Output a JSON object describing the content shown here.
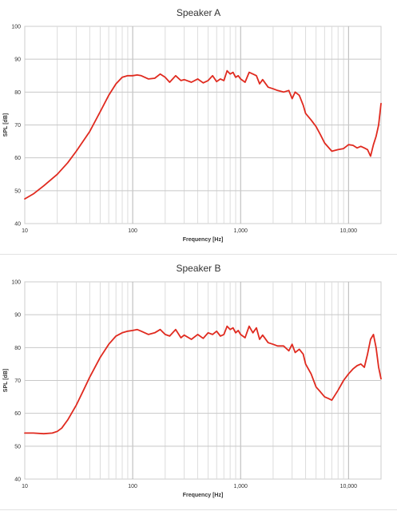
{
  "chart_data": [
    {
      "type": "line",
      "title": "Speaker A",
      "xlabel": "Frequency [Hz]",
      "ylabel": "SPL [dB]",
      "xscale": "log",
      "xlim": [
        10,
        20000
      ],
      "ylim": [
        40,
        100
      ],
      "grid": true,
      "x_tick_labels": [
        "10",
        "100",
        "1,000",
        "10,000"
      ],
      "y_tick_labels": [
        "40",
        "50",
        "60",
        "70",
        "80",
        "90",
        "100"
      ],
      "line_color": "#e02a1f",
      "series": [
        {
          "x": [
            10,
            12,
            15,
            20,
            25,
            30,
            40,
            50,
            60,
            70,
            80,
            90,
            100,
            110,
            120,
            140,
            160,
            180,
            200,
            220,
            250,
            280,
            300,
            350,
            400,
            450,
            500,
            550,
            600,
            650,
            700,
            750,
            800,
            850,
            900,
            950,
            1000,
            1100,
            1200,
            1300,
            1400,
            1500,
            1600,
            1800,
            2000,
            2200,
            2500,
            2800,
            3000,
            3200,
            3500,
            3800,
            4000,
            4500,
            5000,
            5500,
            6000,
            7000,
            8000,
            9000,
            10000,
            11000,
            12000,
            13000,
            14000,
            15000,
            16000,
            17000,
            18000,
            19000,
            20000
          ],
          "y": [
            47.5,
            49,
            51.5,
            55,
            58.5,
            62,
            68,
            74,
            79,
            82.5,
            84.5,
            85,
            85,
            85.2,
            85,
            84,
            84.2,
            85.5,
            84.5,
            83,
            85,
            83.5,
            83.8,
            83,
            84,
            82.8,
            83.5,
            85,
            83.2,
            84,
            83.5,
            86.5,
            85.5,
            86,
            84.5,
            85,
            84,
            83,
            86,
            85.5,
            85,
            82.5,
            83.8,
            81.5,
            81,
            80.5,
            80,
            80.5,
            78,
            80,
            79,
            76,
            73.5,
            71.5,
            69.5,
            67,
            64.5,
            62,
            62.5,
            62.8,
            64,
            63.8,
            63,
            63.5,
            63,
            62.5,
            60.5,
            64,
            66.5,
            70,
            76.5
          ]
        }
      ]
    },
    {
      "type": "line",
      "title": "Speaker B",
      "xlabel": "Frequency [Hz]",
      "ylabel": "SPL [dB]",
      "xscale": "log",
      "xlim": [
        10,
        20000
      ],
      "ylim": [
        40,
        100
      ],
      "grid": true,
      "x_tick_labels": [
        "10",
        "100",
        "1,000",
        "10,000"
      ],
      "y_tick_labels": [
        "40",
        "50",
        "60",
        "70",
        "80",
        "90",
        "100"
      ],
      "line_color": "#e02a1f",
      "series": [
        {
          "x": [
            10,
            12,
            15,
            18,
            20,
            22,
            25,
            30,
            35,
            40,
            50,
            60,
            70,
            80,
            90,
            100,
            110,
            120,
            140,
            160,
            180,
            200,
            220,
            250,
            280,
            300,
            350,
            400,
            450,
            500,
            550,
            600,
            650,
            700,
            750,
            800,
            850,
            900,
            950,
            1000,
            1100,
            1200,
            1300,
            1400,
            1500,
            1600,
            1800,
            2000,
            2200,
            2500,
            2800,
            3000,
            3200,
            3500,
            3800,
            4000,
            4500,
            5000,
            5500,
            6000,
            6500,
            7000,
            8000,
            9000,
            10000,
            11000,
            12000,
            13000,
            14000,
            15000,
            16000,
            17000,
            18000,
            19000,
            20000
          ],
          "y": [
            54,
            54,
            53.8,
            54,
            54.5,
            55.5,
            58,
            62.5,
            67,
            71,
            77,
            81,
            83.5,
            84.5,
            85,
            85.2,
            85.5,
            85,
            84,
            84.5,
            85.5,
            84,
            83.5,
            85.5,
            83,
            83.8,
            82.5,
            84,
            82.8,
            84.5,
            84,
            85,
            83.5,
            84,
            86.5,
            85.5,
            86,
            84.5,
            85.2,
            84,
            83,
            86.5,
            84.5,
            86,
            82.5,
            83.8,
            81.5,
            81,
            80.5,
            80.5,
            79,
            81,
            78.5,
            79.5,
            78,
            75,
            72,
            68,
            66.5,
            65,
            64.5,
            64,
            67,
            70,
            72,
            73.5,
            74.5,
            75,
            74,
            78,
            82.5,
            84,
            80,
            74,
            70.5
          ]
        }
      ]
    }
  ]
}
